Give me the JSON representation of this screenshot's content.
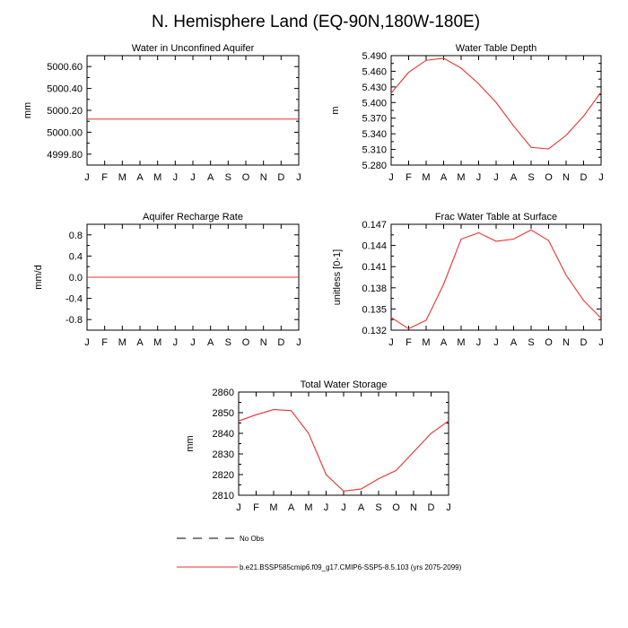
{
  "main_title": "N. Hemisphere Land (EQ-90N,180W-180E)",
  "months": [
    "J",
    "F",
    "M",
    "A",
    "M",
    "J",
    "J",
    "A",
    "S",
    "O",
    "N",
    "D",
    "J"
  ],
  "colors": {
    "model_line": "#e8312f",
    "axis": "#000000",
    "obs_line": "#000000"
  },
  "legend": {
    "obs_label": "No Obs",
    "model_label": "b.e21.BSSP585cmip6.f09_g17.CMIP6-SSP5-8.5.103 (yrs 2075-2099)"
  },
  "chart_data": [
    {
      "id": "water-unconfined-aquifer",
      "type": "line",
      "title": "Water in Unconfined Aquifer",
      "ylabel": "mm",
      "ylim": [
        4999.7,
        5000.7
      ],
      "yticks": [
        4999.8,
        5000.0,
        5000.2,
        5000.4,
        5000.6
      ],
      "ytick_labels": [
        "4999.80",
        "5000.00",
        "5000.20",
        "5000.40",
        "5000.60"
      ],
      "series": [
        {
          "values": [
            5000.12,
            5000.12,
            5000.12,
            5000.12,
            5000.12,
            5000.12,
            5000.12,
            5000.12,
            5000.12,
            5000.12,
            5000.12,
            5000.12,
            5000.12
          ]
        }
      ]
    },
    {
      "id": "water-table-depth",
      "type": "line",
      "title": "Water Table Depth",
      "ylabel": "m",
      "ylim": [
        5.28,
        5.49
      ],
      "yticks": [
        5.28,
        5.31,
        5.34,
        5.37,
        5.4,
        5.43,
        5.46,
        5.49
      ],
      "ytick_labels": [
        "5.280",
        "5.310",
        "5.340",
        "5.370",
        "5.400",
        "5.430",
        "5.460",
        "5.490"
      ],
      "series": [
        {
          "values": [
            5.418,
            5.458,
            5.481,
            5.485,
            5.466,
            5.436,
            5.4,
            5.355,
            5.314,
            5.311,
            5.337,
            5.374,
            5.42
          ]
        }
      ]
    },
    {
      "id": "aquifer-recharge-rate",
      "type": "line",
      "title": "Aquifer Recharge Rate",
      "ylabel": "mm/d",
      "ylim": [
        -1.0,
        1.0
      ],
      "yticks": [
        -0.8,
        -0.4,
        0.0,
        0.4,
        0.8
      ],
      "ytick_labels": [
        "-0.8",
        "-0.4",
        "0.0",
        "0.4",
        "0.8"
      ],
      "series": [
        {
          "values": [
            0,
            0,
            0,
            0,
            0,
            0,
            0,
            0,
            0,
            0,
            0,
            0,
            0
          ]
        }
      ]
    },
    {
      "id": "frac-water-table-surface",
      "type": "line",
      "title": "Frac Water Table at Surface",
      "ylabel": "unitless [0-1]",
      "ylim": [
        0.132,
        0.147
      ],
      "yticks": [
        0.132,
        0.135,
        0.138,
        0.141,
        0.144,
        0.147
      ],
      "ytick_labels": [
        "0.132",
        "0.135",
        "0.138",
        "0.141",
        "0.144",
        "0.147"
      ],
      "series": [
        {
          "values": [
            0.1338,
            0.1322,
            0.1334,
            0.1385,
            0.1449,
            0.1458,
            0.1446,
            0.1449,
            0.1462,
            0.1447,
            0.1398,
            0.1362,
            0.1337
          ]
        }
      ]
    },
    {
      "id": "total-water-storage",
      "type": "line",
      "title": "Total Water Storage",
      "ylabel": "mm",
      "ylim": [
        2810,
        2860
      ],
      "yticks": [
        2810,
        2820,
        2830,
        2840,
        2850,
        2860
      ],
      "ytick_labels": [
        "2810",
        "2820",
        "2830",
        "2840",
        "2850",
        "2860"
      ],
      "series": [
        {
          "values": [
            2846,
            2849,
            2851.5,
            2851,
            2840,
            2820,
            2812,
            2813,
            2818,
            2822,
            2831,
            2840,
            2846
          ]
        }
      ]
    }
  ]
}
